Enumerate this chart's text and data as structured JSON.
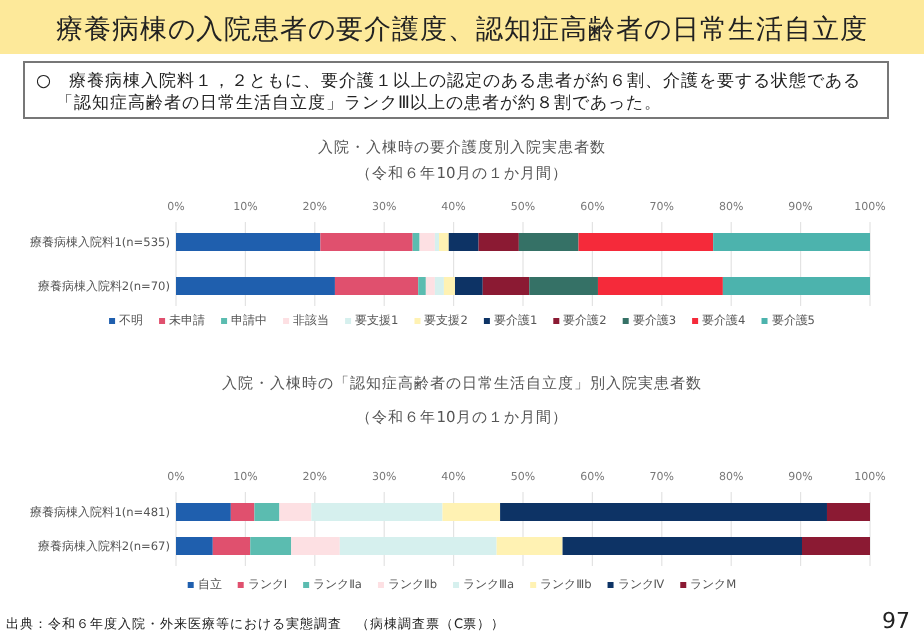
{
  "chart_data": [
    {
      "type": "bar",
      "orientation": "horizontal",
      "stacked": true,
      "title": "入院・入棟時の要介護度別入院実患者数",
      "subtitle": "（令和６年10月の１か月間）",
      "annotations": [
        "療養病棟の入院患者の要介護度、認知症高齢者の日常生活自立度",
        "○　療養病棟入院料１，２ともに、要介護１以上の認定のある患者が約６割、介護を要する状態である「認知症高齢者の日常生活自立度」ランクⅢ以上の患者が約８割であった。"
      ],
      "categories": [
        "療養病棟入院料1(n=535)",
        "療養病棟入院料2(n=70)"
      ],
      "xlim": [
        0,
        100
      ],
      "xticks": [
        {
          "value": 0,
          "label": "0%"
        },
        {
          "value": 10,
          "label": "10%"
        },
        {
          "value": 20,
          "label": "20%"
        },
        {
          "value": 30,
          "label": "30%"
        },
        {
          "value": 40,
          "label": "40%"
        },
        {
          "value": 50,
          "label": "50%"
        },
        {
          "value": 60,
          "label": "60%"
        },
        {
          "value": 70,
          "label": "70%"
        },
        {
          "value": 80,
          "label": "80%"
        },
        {
          "value": 90,
          "label": "90%"
        },
        {
          "value": 100,
          "label": "100%"
        }
      ],
      "grid": "x",
      "legend": "bottom",
      "series": [
        {
          "name": "不明",
          "color": "#1f5fae",
          "values": [
            20.8,
            22.9
          ]
        },
        {
          "name": "未申請",
          "color": "#e0506e",
          "values": [
            13.3,
            12.0
          ]
        },
        {
          "name": "申請中",
          "color": "#5bbcb0",
          "values": [
            1.0,
            1.1
          ]
        },
        {
          "name": "非該当",
          "color": "#fde0e3",
          "values": [
            2.2,
            1.3
          ]
        },
        {
          "name": "要支援1",
          "color": "#d6f0ee",
          "values": [
            0.6,
            1.3
          ]
        },
        {
          "name": "要支援2",
          "color": "#fff2b3",
          "values": [
            1.4,
            1.6
          ]
        },
        {
          "name": "要介護1",
          "color": "#0d3365",
          "values": [
            4.3,
            4.0
          ]
        },
        {
          "name": "要介護2",
          "color": "#8b1a33",
          "values": [
            5.8,
            6.7
          ]
        },
        {
          "name": "要介護3",
          "color": "#357166",
          "values": [
            8.6,
            9.9
          ]
        },
        {
          "name": "要介護4",
          "color": "#f52a3a",
          "values": [
            19.4,
            18.0
          ]
        },
        {
          "name": "要介護5",
          "color": "#4cb3ad",
          "values": [
            22.6,
            21.2
          ]
        }
      ]
    },
    {
      "type": "bar",
      "orientation": "horizontal",
      "stacked": true,
      "title": "入院・入棟時の「認知症高齢者の日常生活自立度」別入院実患者数",
      "subtitle": "（令和６年10月の１か月間）",
      "annotations": [
        "出典：令和６年度入院・外来医療等における実態調査　（病棟調査票（C票））",
        "97"
      ],
      "categories": [
        "療養病棟入院料1(n=481)",
        "療養病棟入院料2(n=67)"
      ],
      "xlim": [
        0,
        100
      ],
      "xticks": [
        {
          "value": 0,
          "label": "0%"
        },
        {
          "value": 10,
          "label": "10%"
        },
        {
          "value": 20,
          "label": "20%"
        },
        {
          "value": 30,
          "label": "30%"
        },
        {
          "value": 40,
          "label": "40%"
        },
        {
          "value": 50,
          "label": "50%"
        },
        {
          "value": 60,
          "label": "60%"
        },
        {
          "value": 70,
          "label": "70%"
        },
        {
          "value": 80,
          "label": "80%"
        },
        {
          "value": 90,
          "label": "90%"
        },
        {
          "value": 100,
          "label": "100%"
        }
      ],
      "grid": "x",
      "legend": "bottom",
      "series": [
        {
          "name": "自立",
          "color": "#1f5fae",
          "values": [
            7.9,
            5.3
          ]
        },
        {
          "name": "ランクⅠ",
          "color": "#e0506e",
          "values": [
            3.4,
            5.4
          ]
        },
        {
          "name": "ランクⅡa",
          "color": "#5bbcb0",
          "values": [
            3.6,
            5.9
          ]
        },
        {
          "name": "ランクⅡb",
          "color": "#fde0e3",
          "values": [
            4.6,
            7.0
          ]
        },
        {
          "name": "ランクⅢa",
          "color": "#d6f0ee",
          "values": [
            18.9,
            22.6
          ]
        },
        {
          "name": "ランクⅢb",
          "color": "#fff2b3",
          "values": [
            8.3,
            9.5
          ]
        },
        {
          "name": "ランクⅣ",
          "color": "#0d3365",
          "values": [
            47.1,
            34.5
          ]
        },
        {
          "name": "ランクM",
          "color": "#8b1a33",
          "values": [
            6.2,
            9.8
          ]
        }
      ]
    }
  ]
}
